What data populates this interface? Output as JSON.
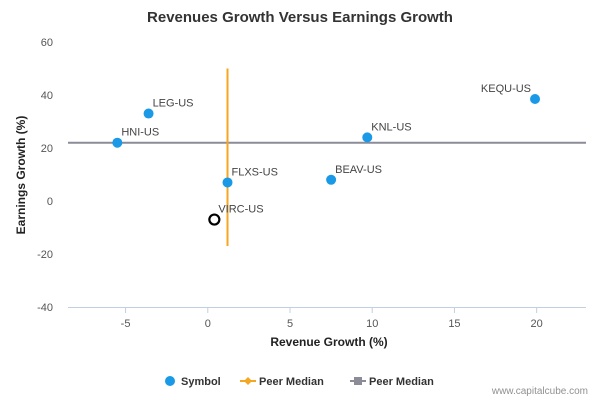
{
  "chart_data": {
    "type": "scatter",
    "title": "Revenues Growth Versus Earnings Growth",
    "xlabel": "Revenue Growth (%)",
    "ylabel": "Earnings Growth (%)",
    "xlim": [
      -8.5,
      23
    ],
    "ylim": [
      -40,
      60
    ],
    "xticks": [
      -5,
      0,
      5,
      10,
      15,
      20
    ],
    "yticks": [
      60,
      40,
      20,
      0,
      -20,
      -40
    ],
    "xtick_labels": [
      "-5",
      "0",
      "5",
      "10",
      "15",
      "20"
    ],
    "ytick_labels": [
      "60",
      "40",
      "20",
      "0",
      "-20",
      "-40"
    ],
    "grid": false,
    "series": [
      {
        "name": "Symbol",
        "color": "#1a9ae6",
        "points": [
          {
            "label": "LEG-US",
            "x": -3.6,
            "y": 33
          },
          {
            "label": "HNI-US",
            "x": -5.5,
            "y": 22
          },
          {
            "label": "FLXS-US",
            "x": 1.2,
            "y": 7
          },
          {
            "label": "BEAV-US",
            "x": 7.5,
            "y": 8
          },
          {
            "label": "KNL-US",
            "x": 9.7,
            "y": 24
          },
          {
            "label": "KEQU-US",
            "x": 19.9,
            "y": 38.5
          }
        ]
      }
    ],
    "highlight": {
      "label": "VIRC-US",
      "x": 0.4,
      "y": -7,
      "color": "#000000"
    },
    "peer_median_x": {
      "name": "Peer Median",
      "value": 1.2,
      "y_range": [
        -17,
        50
      ],
      "color": "#f5a623"
    },
    "peer_median_y": {
      "name": "Peer Median",
      "value": 22,
      "color": "#8c8c99"
    },
    "legend": {
      "position": "bottom",
      "items": [
        {
          "label": "Symbol",
          "color": "#1a9ae6",
          "shape": "circle"
        },
        {
          "label": "Peer Median",
          "color": "#f5a623",
          "shape": "line-diamond"
        },
        {
          "label": "Peer Median",
          "color": "#8c8c99",
          "shape": "line-square"
        }
      ]
    }
  },
  "credit": "www.capitalcube.com"
}
